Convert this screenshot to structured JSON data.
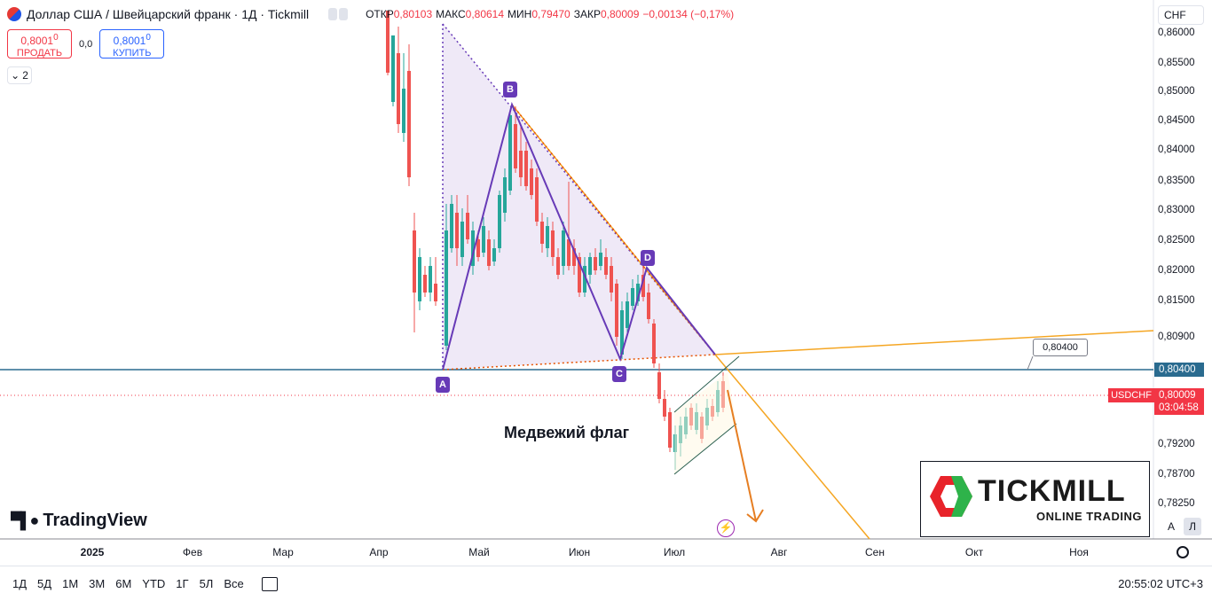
{
  "header": {
    "title": "Доллар США / Швейцарский франк · 1Д · Tickmill",
    "ohlc": [
      {
        "k": "ОТКР",
        "v": "0,80103"
      },
      {
        "k": "МАКС",
        "v": "0,80614"
      },
      {
        "k": "МИН",
        "v": "0,79470"
      },
      {
        "k": "ЗАКР",
        "v": "0,80009"
      },
      {
        "k": "",
        "v": "−0,00134 (−0,17%)"
      }
    ]
  },
  "trade": {
    "sell_price": "0,8001",
    "sell_sup": "0",
    "sell_label": "ПРОДАТЬ",
    "spread": "0,0",
    "buy_price": "0,8001",
    "buy_sup": "0",
    "buy_label": "КУПИТЬ"
  },
  "collapse": {
    "count": "2"
  },
  "currency": "CHF",
  "price_axis": [
    "0,86000",
    "0,85500",
    "0,85000",
    "0,84500",
    "0,84000",
    "0,83500",
    "0,83000",
    "0,82500",
    "0,82000",
    "0,81500",
    "0,80900",
    "0,79200",
    "0,78700",
    "0,78250"
  ],
  "badges": {
    "hline": "0,80400",
    "symbol": "USDCHF",
    "last": "0,80009",
    "countdown": "03:04:58",
    "callout": "0,80400"
  },
  "points": [
    "A",
    "B",
    "C",
    "D"
  ],
  "annotation": "Медвежий флаг",
  "time_axis": [
    "2025",
    "Фев",
    "Мар",
    "Апр",
    "Май",
    "Июн",
    "Июл",
    "Авг",
    "Сен",
    "Окт",
    "Ноя"
  ],
  "logo": {
    "tv": "TradingView",
    "brand": "TICKMILL",
    "tag": "ONLINE TRADING"
  },
  "scale_buttons": [
    "A",
    "Л"
  ],
  "ranges": [
    "1Д",
    "5Д",
    "1М",
    "3М",
    "6М",
    "YTD",
    "1Г",
    "5Л",
    "Все"
  ],
  "clock": "20:55:02 UTC+3",
  "colors": {
    "up": "#26a69a",
    "down": "#ef5350",
    "pattern": "#673ab7",
    "line": "#f5a623",
    "hline": "#2a6b8f"
  }
}
